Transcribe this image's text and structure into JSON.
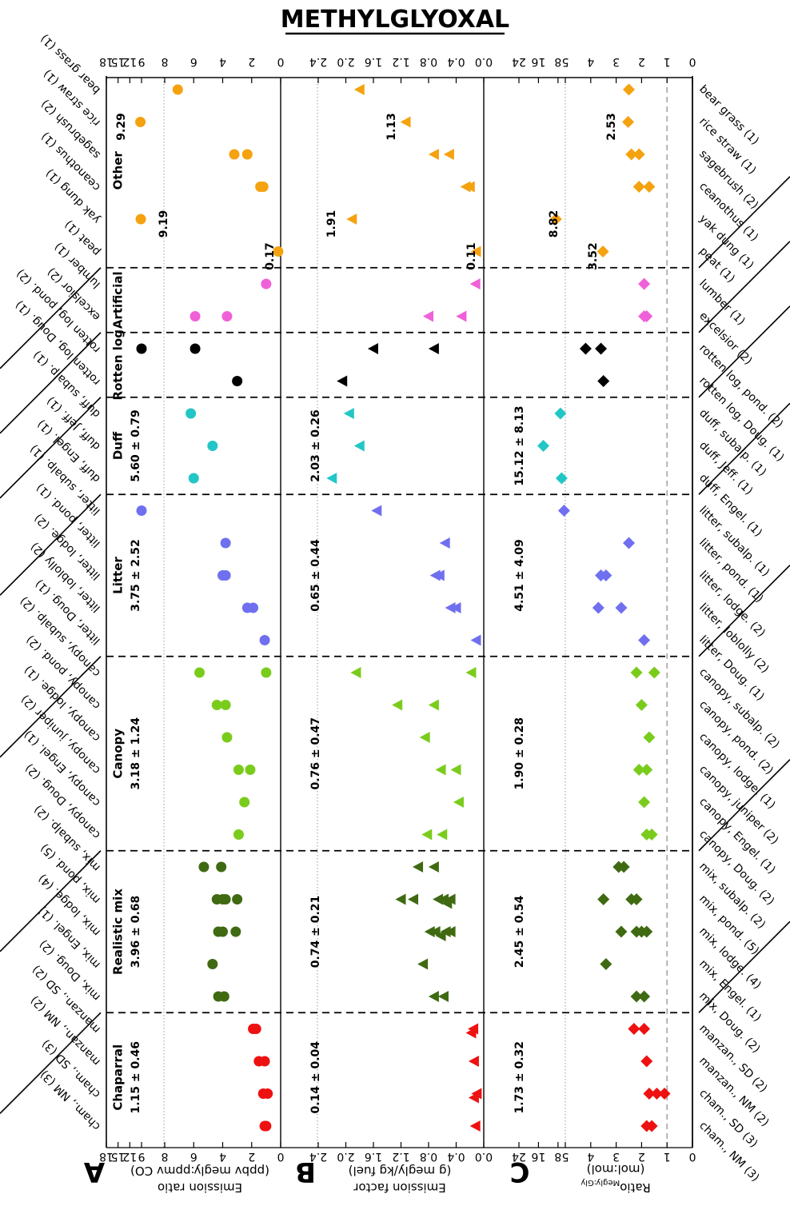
{
  "title": "METHYLGLYOXAL",
  "panels": {
    "A": {
      "letter": "A",
      "ylabel_line1": "Emission ratio",
      "ylabel_line2": "(ppbv megly:ppmv CO)"
    },
    "B": {
      "letter": "B",
      "ylabel_line1": "Emission factor",
      "ylabel_line2": "(g megly/kg fuel)"
    },
    "C": {
      "letter": "C",
      "ylabel_line1": "Ratio",
      "ylabel_sub": "Megly:Gly",
      "ylabel_line2": "(mol:mol)"
    }
  },
  "groups": [
    {
      "name": "Chaparral",
      "A": "1.15 ± 0.46",
      "B": "0.14 ± 0.04",
      "C": "1.73 ± 0.32"
    },
    {
      "name": "Realistic mix",
      "A": "3.96 ± 0.68",
      "B": "0.74 ± 0.21",
      "C": "2.45 ± 0.54"
    },
    {
      "name": "Canopy",
      "A": "3.18 ± 1.24",
      "B": "0.76 ± 0.47",
      "C": "1.90 ± 0.28"
    },
    {
      "name": "Litter",
      "A": "3.75 ± 2.52",
      "B": "0.65 ± 0.44",
      "C": "4.51 ± 4.09"
    },
    {
      "name": "Duff",
      "A": "5.60 ± 0.79",
      "B": "2.03 ± 0.26",
      "C": "15.12 ± 8.13"
    },
    {
      "name": "Rotten log",
      "A": "",
      "B": "",
      "C": ""
    },
    {
      "name": "Artificial",
      "A": "",
      "B": "",
      "C": ""
    },
    {
      "name": "Other",
      "A": "",
      "B": "",
      "C": ""
    }
  ],
  "fuels": [
    "cham., NM (3)",
    "cham., SD (3)",
    "manzan., NM (2)",
    "manzan., SD (2)",
    "mix, Doug. (2)",
    "mix, Engel. (1)",
    "mix, lodge. (4)",
    "mix, pond. (5)",
    "mix, subalp. (2)",
    "canopy, Doug. (2)",
    "canopy, Engel. (1)",
    "canopy, juniper (2)",
    "canopy, lodge. (1)",
    "canopy, pond. (2)",
    "canopy, subalp. (2)",
    "litter, Doug. (1)",
    "litter, loblolly (2)",
    "litter, lodge. (2)",
    "litter, pond. (1)",
    "litter, subalp. (1)",
    "duff, Engel. (1)",
    "duff, Jeff. (1)",
    "duff, subalp. (1)",
    "rotten log, Doug. (1)",
    "rotten log, pond. (2)",
    "excelsior (2)",
    "lumber (1)",
    "peat (1)",
    "yak dung (1)",
    "ceanothus (1)",
    "sagebrush (2)",
    "rice straw (1)",
    "bear grass (1)"
  ],
  "annotations": {
    "A": [
      {
        "text": "9.29",
        "fuel": 31
      },
      {
        "text": "9.19",
        "fuel": 28
      },
      {
        "text": "0.17",
        "fuel": 27
      }
    ],
    "B": [
      {
        "text": "1.13",
        "fuel": 31
      },
      {
        "text": "1.91",
        "fuel": 28
      },
      {
        "text": "0.11",
        "fuel": 27
      }
    ],
    "C": [
      {
        "text": "2.53",
        "fuel": 31
      },
      {
        "text": "8.82",
        "fuel": 28
      },
      {
        "text": "3.52",
        "fuel": 27
      }
    ]
  },
  "chart_data": {
    "type": "scatter",
    "title": "METHYLGLYOXAL",
    "group_colors": {
      "Chaparral": "#ee1111",
      "Realistic mix": "#3f6a12",
      "Canopy": "#7acc1c",
      "Litter": "#6f6ff0",
      "Duff": "#22c6c6",
      "Rotten log": "#000000",
      "Artificial": "#f060d8",
      "Other": "#f5a20f"
    },
    "fuel_group": [
      0,
      0,
      0,
      0,
      1,
      1,
      1,
      1,
      1,
      2,
      2,
      2,
      2,
      2,
      2,
      3,
      3,
      3,
      3,
      3,
      4,
      4,
      4,
      5,
      5,
      6,
      6,
      7,
      7,
      7,
      7,
      7,
      7
    ],
    "panels": [
      {
        "id": "A",
        "marker": "circle",
        "xlabel": "Emission ratio (ppbv megly:ppmv CO)",
        "ticks": [
          "0",
          "2",
          "4",
          "6",
          "8",
          "9",
          "12",
          "15",
          "18"
        ],
        "range_linear": [
          0,
          8
        ],
        "range_broken": [
          9,
          18
        ],
        "points": [
          [
            0,
            1.0
          ],
          [
            0,
            1.1
          ],
          [
            1,
            0.9
          ],
          [
            1,
            1.2
          ],
          [
            2,
            1.1
          ],
          [
            2,
            1.5
          ],
          [
            3,
            1.7
          ],
          [
            3,
            1.9
          ],
          [
            4,
            3.9
          ],
          [
            4,
            4.3
          ],
          [
            5,
            4.7
          ],
          [
            6,
            3.1
          ],
          [
            6,
            4.0
          ],
          [
            6,
            4.3
          ],
          [
            7,
            3.0
          ],
          [
            7,
            3.8
          ],
          [
            7,
            4.0
          ],
          [
            7,
            4.4
          ],
          [
            8,
            4.1
          ],
          [
            8,
            5.3
          ],
          [
            9,
            2.9
          ],
          [
            10,
            2.5
          ],
          [
            11,
            2.1
          ],
          [
            11,
            2.9
          ],
          [
            12,
            3.7
          ],
          [
            13,
            3.8
          ],
          [
            13,
            4.4
          ],
          [
            14,
            1.0
          ],
          [
            14,
            5.6
          ],
          [
            15,
            1.1
          ],
          [
            16,
            1.9
          ],
          [
            16,
            2.3
          ],
          [
            17,
            3.8
          ],
          [
            17,
            4.0
          ],
          [
            18,
            3.8
          ],
          [
            19,
            9.0
          ],
          [
            20,
            6.0
          ],
          [
            21,
            4.7
          ],
          [
            22,
            6.2
          ],
          [
            23,
            3.0
          ],
          [
            24,
            5.9
          ],
          [
            24,
            9.0
          ],
          [
            25,
            3.7
          ],
          [
            25,
            5.9
          ],
          [
            26,
            1.0
          ],
          [
            27,
            0.17
          ],
          [
            28,
            9.19
          ],
          [
            29,
            1.2
          ],
          [
            29,
            1.4
          ],
          [
            30,
            2.3
          ],
          [
            30,
            3.2
          ],
          [
            31,
            9.29
          ],
          [
            32,
            7.1
          ]
        ]
      },
      {
        "id": "B",
        "marker": "triangle",
        "xlabel": "Emission factor (g megly/kg fuel)",
        "ticks": [
          "0.0",
          "0.4",
          "0.8",
          "1.2",
          "1.6",
          "2.0",
          "2.4"
        ],
        "range_linear": [
          0,
          2.4
        ],
        "points": [
          [
            0,
            0.12
          ],
          [
            1,
            0.1
          ],
          [
            1,
            0.14
          ],
          [
            2,
            0.14
          ],
          [
            3,
            0.15
          ],
          [
            3,
            0.18
          ],
          [
            4,
            0.58
          ],
          [
            4,
            0.72
          ],
          [
            5,
            0.88
          ],
          [
            6,
            0.48
          ],
          [
            6,
            0.55
          ],
          [
            6,
            0.62
          ],
          [
            6,
            0.7
          ],
          [
            6,
            0.78
          ],
          [
            7,
            0.48
          ],
          [
            7,
            0.53
          ],
          [
            7,
            0.58
          ],
          [
            7,
            0.66
          ],
          [
            7,
            1.02
          ],
          [
            7,
            1.2
          ],
          [
            8,
            0.72
          ],
          [
            8,
            0.95
          ],
          [
            9,
            0.6
          ],
          [
            9,
            0.82
          ],
          [
            10,
            0.36
          ],
          [
            11,
            0.4
          ],
          [
            11,
            0.62
          ],
          [
            12,
            0.85
          ],
          [
            13,
            0.72
          ],
          [
            13,
            1.25
          ],
          [
            14,
            0.18
          ],
          [
            14,
            1.85
          ],
          [
            15,
            0.11
          ],
          [
            16,
            0.4
          ],
          [
            16,
            0.48
          ],
          [
            17,
            0.64
          ],
          [
            17,
            0.7
          ],
          [
            18,
            0.56
          ],
          [
            19,
            1.55
          ],
          [
            20,
            2.2
          ],
          [
            21,
            1.8
          ],
          [
            22,
            1.95
          ],
          [
            23,
            2.05
          ],
          [
            24,
            0.72
          ],
          [
            24,
            1.6
          ],
          [
            25,
            0.32
          ],
          [
            25,
            0.8
          ],
          [
            26,
            0.12
          ],
          [
            27,
            0.11
          ],
          [
            28,
            1.91
          ],
          [
            29,
            0.2
          ],
          [
            29,
            0.26
          ],
          [
            30,
            0.5
          ],
          [
            30,
            0.72
          ],
          [
            31,
            1.13
          ],
          [
            32,
            1.8
          ]
        ]
      },
      {
        "id": "C",
        "marker": "diamond",
        "xlabel": "RatioMegly:Gly (mol:mol)",
        "ticks": [
          "0",
          "1",
          "2",
          "3",
          "4",
          "5",
          "8",
          "16",
          "24"
        ],
        "range_linear": [
          0,
          5
        ],
        "range_broken": [
          5,
          24
        ],
        "reference_line": 1,
        "points": [
          [
            0,
            1.6
          ],
          [
            0,
            1.8
          ],
          [
            1,
            1.1
          ],
          [
            1,
            1.4
          ],
          [
            1,
            1.7
          ],
          [
            2,
            1.8
          ],
          [
            3,
            1.9
          ],
          [
            3,
            2.3
          ],
          [
            4,
            1.9
          ],
          [
            4,
            2.2
          ],
          [
            5,
            3.4
          ],
          [
            6,
            1.8
          ],
          [
            6,
            2.0
          ],
          [
            6,
            2.2
          ],
          [
            6,
            2.8
          ],
          [
            7,
            2.2
          ],
          [
            7,
            2.4
          ],
          [
            7,
            3.5
          ],
          [
            8,
            2.7
          ],
          [
            8,
            2.9
          ],
          [
            9,
            1.6
          ],
          [
            9,
            1.8
          ],
          [
            10,
            1.9
          ],
          [
            11,
            1.8
          ],
          [
            11,
            2.1
          ],
          [
            12,
            1.7
          ],
          [
            13,
            2.0
          ],
          [
            14,
            1.5
          ],
          [
            14,
            2.2
          ],
          [
            15,
            1.9
          ],
          [
            16,
            2.8
          ],
          [
            16,
            3.7
          ],
          [
            17,
            3.4
          ],
          [
            17,
            3.6
          ],
          [
            18,
            2.5
          ],
          [
            19,
            5.5
          ],
          [
            20,
            6.5
          ],
          [
            21,
            14.0
          ],
          [
            22,
            7.0
          ],
          [
            23,
            3.5
          ],
          [
            24,
            3.6
          ],
          [
            24,
            4.2
          ],
          [
            25,
            1.8
          ],
          [
            25,
            1.9
          ],
          [
            26,
            1.9
          ],
          [
            27,
            3.52
          ],
          [
            28,
            8.82
          ],
          [
            29,
            1.7
          ],
          [
            29,
            2.1
          ],
          [
            30,
            2.1
          ],
          [
            30,
            2.4
          ],
          [
            31,
            2.53
          ],
          [
            32,
            2.5
          ]
        ]
      }
    ]
  }
}
